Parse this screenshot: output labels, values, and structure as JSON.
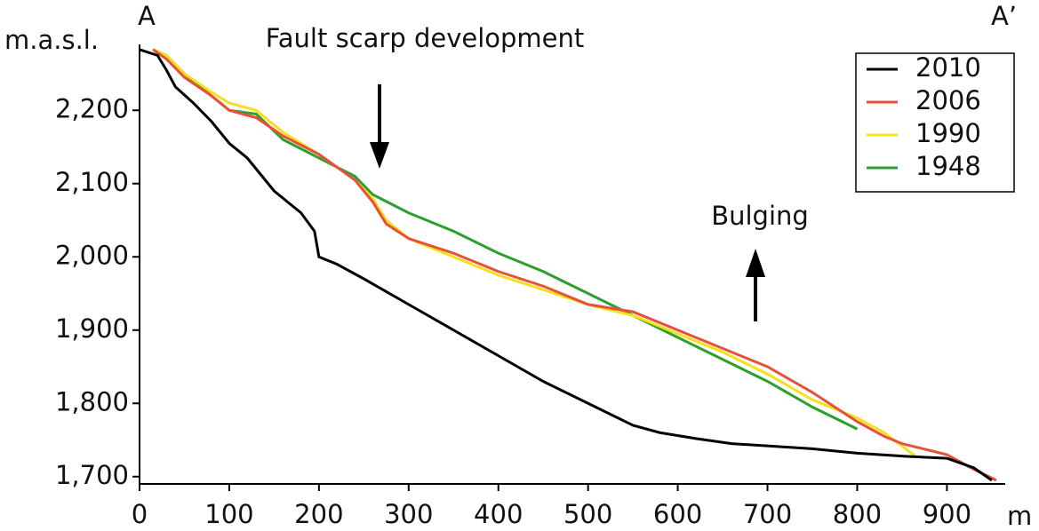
{
  "chart_data": {
    "type": "line",
    "title": "Fault scarp development",
    "annotations": [
      "Bulging",
      "A",
      "A’"
    ],
    "y_label": "m.a.s.l.",
    "x_label": "m",
    "xlim": [
      0,
      965
    ],
    "xticks": [
      0,
      100,
      200,
      300,
      400,
      500,
      600,
      700,
      800,
      900
    ],
    "ylim": [
      1690,
      2290
    ],
    "yticks": [
      {
        "value": 1700,
        "label": "1,700"
      },
      {
        "value": 1800,
        "label": "1,800"
      },
      {
        "value": 1900,
        "label": "1,900"
      },
      {
        "value": 2000,
        "label": "2,000"
      },
      {
        "value": 2100,
        "label": "2,100"
      },
      {
        "value": 2200,
        "label": "2,200"
      }
    ],
    "legend": "top-right",
    "series": [
      {
        "name": "2010",
        "color": "#000000",
        "x": [
          0,
          20,
          30,
          40,
          60,
          80,
          100,
          120,
          150,
          180,
          195,
          200,
          220,
          250,
          300,
          350,
          400,
          450,
          500,
          550,
          580,
          620,
          660,
          700,
          750,
          800,
          850,
          900,
          930,
          950
        ],
        "values": [
          2283,
          2275,
          2255,
          2232,
          2210,
          2185,
          2155,
          2135,
          2090,
          2060,
          2035,
          2000,
          1990,
          1970,
          1935,
          1900,
          1865,
          1830,
          1800,
          1770,
          1760,
          1752,
          1745,
          1742,
          1738,
          1732,
          1728,
          1725,
          1712,
          1695
        ]
      },
      {
        "name": "2006",
        "color": "#e8503a",
        "x": [
          15,
          30,
          50,
          80,
          100,
          130,
          160,
          200,
          240,
          260,
          275,
          300,
          350,
          400,
          450,
          500,
          550,
          600,
          650,
          700,
          750,
          800,
          830,
          850,
          900,
          930,
          955
        ],
        "values": [
          2283,
          2270,
          2245,
          2220,
          2200,
          2190,
          2165,
          2140,
          2105,
          2075,
          2045,
          2025,
          2005,
          1980,
          1960,
          1935,
          1925,
          1900,
          1875,
          1850,
          1815,
          1775,
          1755,
          1745,
          1730,
          1710,
          1695
        ]
      },
      {
        "name": "1990",
        "color": "#f5e11a",
        "x": [
          15,
          30,
          50,
          80,
          100,
          130,
          160,
          200,
          240,
          260,
          275,
          300,
          350,
          400,
          450,
          500,
          550,
          600,
          650,
          700,
          750,
          800,
          830,
          865
        ],
        "values": [
          2283,
          2275,
          2250,
          2225,
          2210,
          2200,
          2170,
          2140,
          2105,
          2080,
          2050,
          2025,
          2000,
          1975,
          1955,
          1935,
          1920,
          1895,
          1870,
          1840,
          1805,
          1780,
          1760,
          1728
        ]
      },
      {
        "name": "1948",
        "color": "#2ca02c",
        "x": [
          15,
          30,
          50,
          80,
          100,
          130,
          160,
          200,
          240,
          260,
          300,
          350,
          400,
          450,
          500,
          550,
          600,
          650,
          700,
          750,
          800
        ],
        "values": [
          2283,
          2275,
          2250,
          2220,
          2200,
          2195,
          2160,
          2135,
          2110,
          2085,
          2060,
          2035,
          2005,
          1980,
          1950,
          1920,
          1890,
          1860,
          1830,
          1795,
          1765
        ]
      }
    ]
  }
}
